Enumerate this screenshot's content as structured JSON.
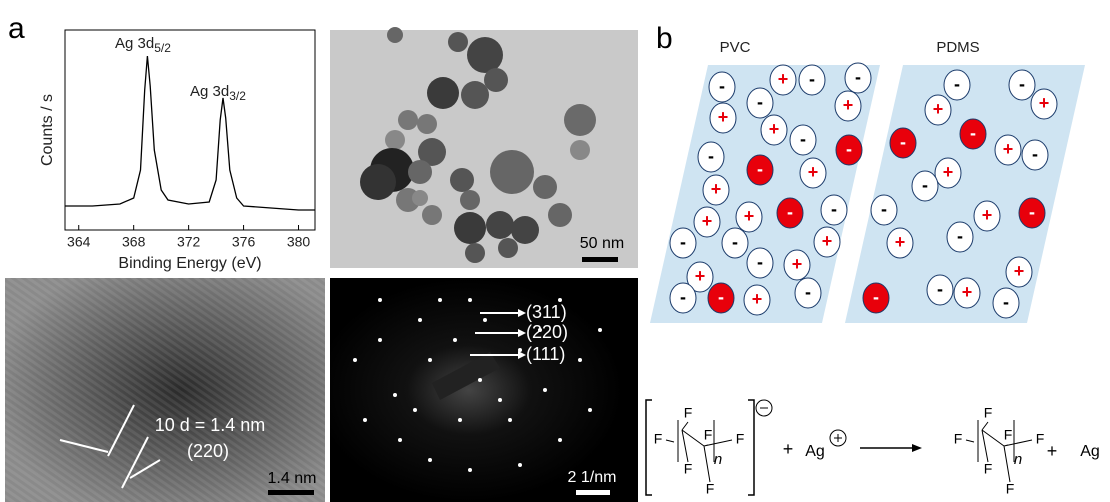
{
  "panel_labels": [
    "a",
    "b"
  ],
  "xps": {
    "type": "line",
    "x_label": "Binding Energy (eV)",
    "y_label": "Counts / s",
    "x": [
      363,
      365,
      367,
      368,
      368.5,
      368.8,
      369,
      369.2,
      369.5,
      370,
      370.5,
      372,
      373.5,
      374,
      374.3,
      374.5,
      374.7,
      375,
      375.5,
      376,
      378,
      380,
      381.2
    ],
    "values": [
      12,
      12,
      13,
      16,
      30,
      70,
      87,
      72,
      40,
      20,
      15,
      13,
      14,
      25,
      55,
      66,
      56,
      30,
      16,
      12,
      11,
      10,
      10
    ],
    "xlim": [
      363,
      381.2
    ],
    "xticks": [
      364,
      368,
      372,
      376,
      380
    ],
    "ylim": [
      0,
      100
    ],
    "color": "#000000",
    "peak_labels": [
      {
        "text": "Ag 3d",
        "sub": "5/2"
      },
      {
        "text": "Ag 3d",
        "sub": "3/2"
      }
    ]
  },
  "tem": {
    "scale_bar": "50 nm"
  },
  "hrtem": {
    "spacing": "10 d = 1.4 nm",
    "plane": "(220)",
    "scale_bar": "1.4 nm"
  },
  "saed": {
    "rings": [
      "(311)",
      "(220)",
      "(111)"
    ],
    "scale_bar": "2 1/nm"
  },
  "pvc": {
    "title": "PVC",
    "charges": [
      "-",
      "+",
      "-",
      "-",
      "+",
      "-",
      "+",
      "+",
      "-",
      "-",
      "-",
      "-",
      "+",
      "+",
      "+",
      "-",
      "-",
      "+",
      "-",
      "-",
      "+",
      "-",
      "+",
      "+",
      "-",
      "-",
      "-",
      "+"
    ]
  },
  "pdms": {
    "title": "PDMS",
    "charges": [
      "-",
      "-",
      "+",
      "+",
      "-",
      "-",
      "+",
      "-",
      "+",
      "-",
      "-",
      "+",
      "-",
      "-",
      "+",
      "+",
      "-",
      "+",
      "-",
      "-"
    ]
  },
  "reaction": {
    "reactant": [
      "F",
      "F",
      "F",
      "F",
      "F",
      "F",
      "n"
    ],
    "plus1": "+",
    "ion": "Ag",
    "product": [
      "F",
      "F",
      "F",
      "F",
      "F",
      "F",
      "n"
    ],
    "plus2": "+",
    "metal": "Ag"
  }
}
